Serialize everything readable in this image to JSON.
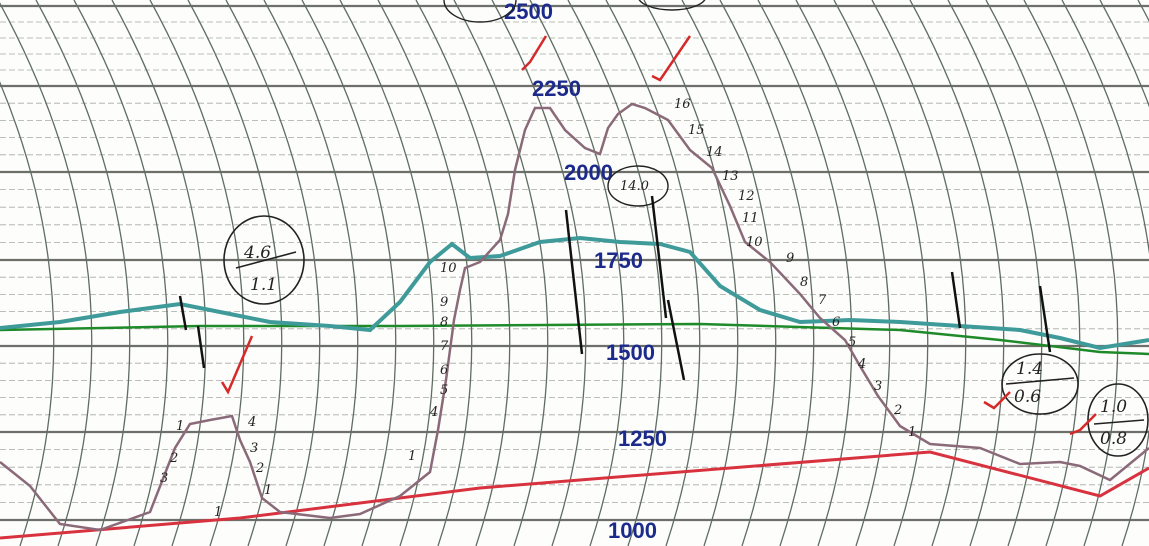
{
  "chart": {
    "scale_labels": [
      "2500",
      "2250",
      "2000",
      "1750",
      "1500",
      "1250",
      "1000"
    ],
    "circled_readings": [
      {
        "top": "4.6",
        "bottom": "1.1"
      },
      {
        "top": "1.4",
        "bottom": "0.6"
      },
      {
        "top": "1.0",
        "bottom": "0.8"
      },
      {
        "top": "14.0",
        "bottom": ""
      }
    ],
    "left_peak_marks": [
      "4",
      "3",
      "2",
      "1",
      "2",
      "3",
      "1",
      "1"
    ],
    "center_left_marks": [
      "10",
      "9",
      "8",
      "7",
      "6",
      "5",
      "4",
      "1"
    ],
    "right_peak_marks": [
      "16",
      "15",
      "14",
      "13",
      "12",
      "11",
      "10",
      "9",
      "8",
      "7",
      "6",
      "5",
      "4",
      "3",
      "2",
      "1"
    ],
    "colors": {
      "grid_arc": "#5f6d63",
      "grid_line": "#6d7068",
      "teal_trace": "#3f9a9a",
      "green_trace": "#1f8a2a",
      "red_trace": "#d8323f",
      "ink_trace": "#8a6a78",
      "scale_text": "#1c2a8c",
      "check_mark": "#d62a2a"
    }
  }
}
